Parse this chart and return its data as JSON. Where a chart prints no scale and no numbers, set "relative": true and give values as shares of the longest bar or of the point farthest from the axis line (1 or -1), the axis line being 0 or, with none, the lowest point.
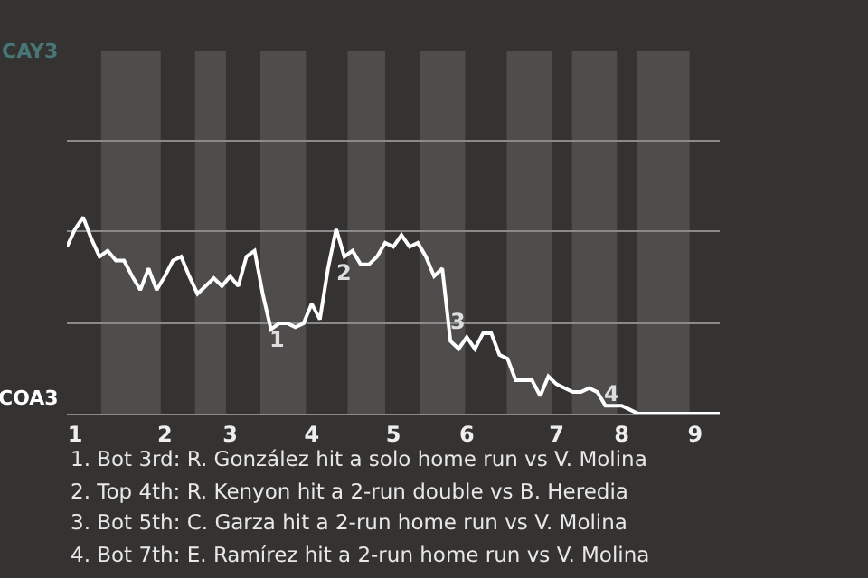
{
  "chart_data": {
    "type": "line",
    "relative": true,
    "categories": [
      null,
      "1",
      null,
      null,
      null,
      null,
      null,
      null,
      null,
      null,
      null,
      null,
      "2",
      null,
      null,
      null,
      null,
      null,
      null,
      null,
      "3",
      null,
      null,
      null,
      null,
      null,
      null,
      null,
      null,
      null,
      "4",
      null,
      null,
      null,
      null,
      null,
      null,
      null,
      null,
      null,
      "5",
      null,
      null,
      null,
      null,
      null,
      null,
      null,
      null,
      "6",
      null,
      null,
      null,
      null,
      null,
      null,
      null,
      null,
      null,
      null,
      "7",
      null,
      null,
      null,
      null,
      null,
      null,
      null,
      "8",
      null,
      null,
      null,
      null,
      null,
      null,
      null,
      null,
      "9",
      null,
      null,
      null
    ],
    "series": [
      {
        "color": "#ffffff",
        "values": [
          0.85,
          0.94,
          1,
          0.89,
          0.8,
          0.83,
          0.78,
          0.78,
          0.7,
          0.63,
          0.74,
          0.63,
          0.7,
          0.78,
          0.8,
          0.7,
          0.61,
          0.65,
          0.69,
          0.65,
          0.7,
          0.65,
          0.8,
          0.83,
          0.61,
          0.43,
          0.46,
          0.46,
          0.44,
          0.46,
          0.56,
          0.48,
          0.74,
          0.94,
          0.8,
          0.83,
          0.76,
          0.76,
          0.8,
          0.87,
          0.85,
          0.91,
          0.85,
          0.87,
          0.8,
          0.7,
          0.74,
          0.37,
          0.33,
          0.39,
          0.33,
          0.41,
          0.41,
          0.3,
          0.28,
          0.17,
          0.17,
          0.17,
          0.09,
          0.19,
          0.15,
          0.13,
          0.11,
          0.11,
          0.13,
          0.11,
          0.04,
          0.04,
          0.04,
          0.02,
          0,
          0,
          0,
          0,
          0,
          0,
          0,
          0,
          0,
          0,
          0
        ]
      }
    ],
    "ref_lines": [
      {
        "axis": "y",
        "value": 0.46,
        "color": "#8a8a8a"
      },
      {
        "axis": "y",
        "value": 0.93,
        "color": "#8a8a8a"
      },
      {
        "axis": "y",
        "value": 1.39,
        "color": "#8a8a8a"
      },
      {
        "axis": "y",
        "value": 1.85,
        "color": "#8a8a8a"
      }
    ],
    "marker": "none",
    "line_style": "solid",
    "annotations": [
      "CAY3",
      "COA3",
      "1",
      "2",
      "3",
      "4",
      "1. Bot 3rd: R. González hit a solo home run vs V. Molina",
      "2. Top 4th: R. Kenyon hit a 2-run double vs B. Heredia",
      "3. Bot 5th: C. Garza hit a 2-run home run vs V. Molina",
      "4. Bot 7th: E. Ramírez hit a 2-run home run vs V. Molina"
    ]
  }
}
